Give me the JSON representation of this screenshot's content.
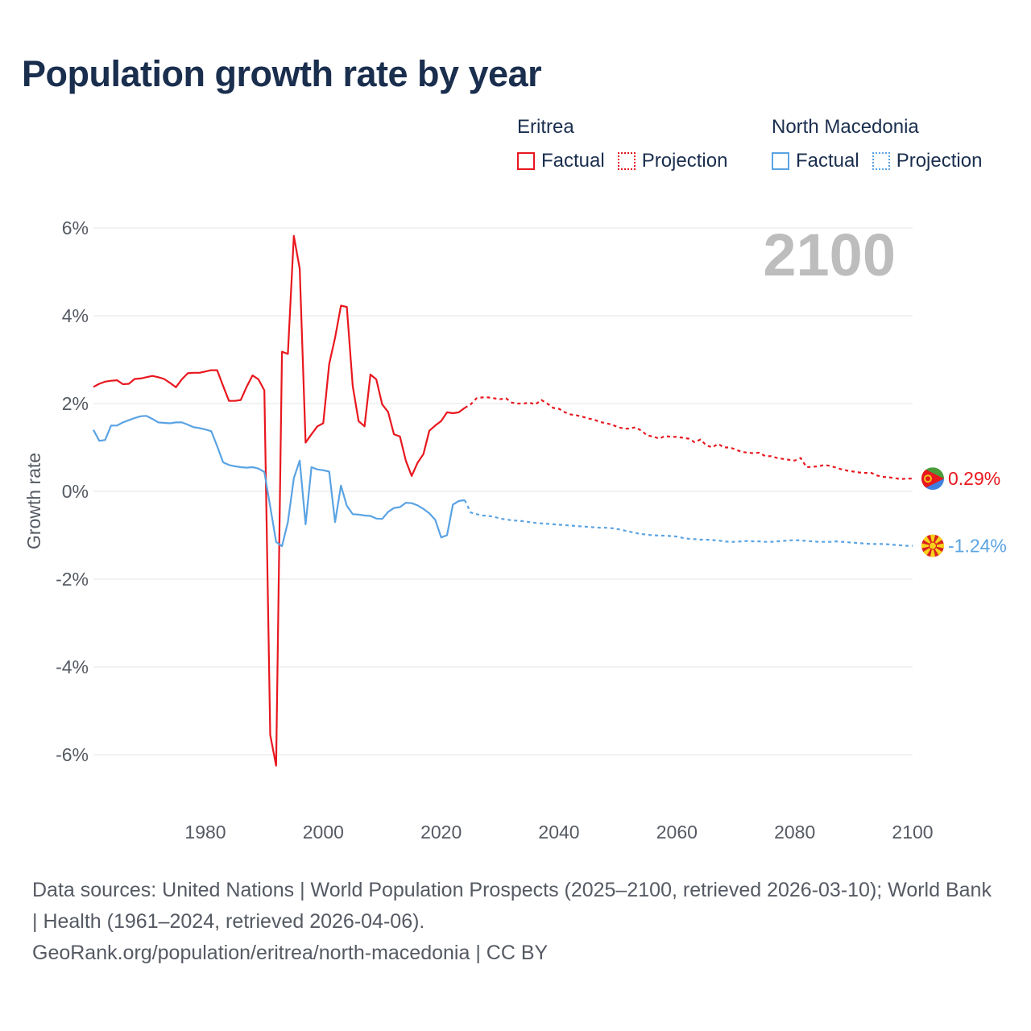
{
  "title": "Population growth rate by year",
  "year_label": "2100",
  "legend": {
    "groups": [
      {
        "name": "Eritrea",
        "factual": "Factual",
        "projection": "Projection",
        "color": "#e8171e"
      },
      {
        "name": "North Macedonia",
        "factual": "Factual",
        "projection": "Projection",
        "color": "#5aa3e3"
      }
    ]
  },
  "footer": {
    "sources": "Data sources: United Nations | World Population Prospects (2025–2100, retrieved 2026-03-10); World Bank | Health (1961–2024, retrieved 2026-04-06).",
    "url": "GeoRank.org/population/eritrea/north-macedonia | CC BY"
  },
  "colors": {
    "grid": "#e6e6e6",
    "tick": "#555a63",
    "year": "#bdbdbd"
  },
  "chart_data": {
    "type": "line",
    "title": "Population growth rate by year",
    "xlabel": "",
    "ylabel": "Growth rate",
    "xlim": [
      1961,
      2100
    ],
    "ylim": [
      -7,
      6.5
    ],
    "x_ticks": [
      1980,
      2000,
      2020,
      2040,
      2060,
      2080,
      2100
    ],
    "y_ticks": [
      {
        "value": 6,
        "label": "6%"
      },
      {
        "value": 4,
        "label": "4%"
      },
      {
        "value": 2,
        "label": "2%"
      },
      {
        "value": 0,
        "label": "0%"
      },
      {
        "value": -2,
        "label": "-2%"
      },
      {
        "value": -4,
        "label": "-4%"
      },
      {
        "value": -6,
        "label": "-6%"
      }
    ],
    "series": [
      {
        "name": "Eritrea",
        "color": "#e8171e",
        "end_label": "0.29%",
        "factual": {
          "x": [
            1961,
            1962,
            1963,
            1964,
            1965,
            1966,
            1967,
            1968,
            1969,
            1970,
            1971,
            1972,
            1973,
            1974,
            1975,
            1976,
            1977,
            1978,
            1979,
            1980,
            1981,
            1982,
            1983,
            1984,
            1985,
            1986,
            1987,
            1988,
            1989,
            1990,
            1991,
            1992,
            1993,
            1994,
            1995,
            1996,
            1997,
            1998,
            1999,
            2000,
            2001,
            2002,
            2003,
            2004,
            2005,
            2006,
            2007,
            2008,
            2009,
            2010,
            2011,
            2012,
            2013,
            2014,
            2015,
            2016,
            2017,
            2018,
            2019,
            2020,
            2021,
            2022,
            2023,
            2024
          ],
          "y": [
            2.38,
            2.45,
            2.5,
            2.52,
            2.53,
            2.44,
            2.45,
            2.56,
            2.57,
            2.6,
            2.63,
            2.6,
            2.56,
            2.47,
            2.37,
            2.55,
            2.69,
            2.7,
            2.7,
            2.73,
            2.76,
            2.76,
            2.4,
            2.06,
            2.06,
            2.08,
            2.38,
            2.64,
            2.55,
            2.3,
            -5.55,
            -6.25,
            3.18,
            3.13,
            5.82,
            5.07,
            1.11,
            1.3,
            1.48,
            1.55,
            2.9,
            3.5,
            4.23,
            4.2,
            2.4,
            1.6,
            1.48,
            2.66,
            2.55,
            1.98,
            1.81,
            1.3,
            1.25,
            0.7,
            0.35,
            0.65,
            0.85,
            1.38,
            1.5,
            1.6,
            1.8,
            1.78,
            1.8,
            1.9
          ]
        },
        "projection": {
          "x": [
            2024,
            2025,
            2026,
            2027,
            2028,
            2029,
            2030,
            2031,
            2032,
            2033,
            2034,
            2035,
            2036,
            2037,
            2038,
            2039,
            2040,
            2041,
            2042,
            2043,
            2044,
            2045,
            2046,
            2047,
            2048,
            2049,
            2050,
            2051,
            2052,
            2053,
            2054,
            2055,
            2056,
            2057,
            2058,
            2059,
            2060,
            2061,
            2062,
            2063,
            2064,
            2065,
            2066,
            2067,
            2068,
            2069,
            2070,
            2071,
            2072,
            2073,
            2074,
            2075,
            2076,
            2077,
            2078,
            2079,
            2080,
            2081,
            2082,
            2083,
            2084,
            2085,
            2086,
            2087,
            2088,
            2089,
            2090,
            2091,
            2092,
            2093,
            2094,
            2095,
            2096,
            2097,
            2098,
            2099,
            2100
          ],
          "y": [
            1.9,
            1.98,
            2.12,
            2.14,
            2.14,
            2.12,
            2.1,
            2.12,
            2.02,
            2.0,
            2.0,
            2.02,
            1.98,
            2.08,
            2.0,
            1.9,
            1.88,
            1.8,
            1.75,
            1.73,
            1.7,
            1.66,
            1.63,
            1.58,
            1.55,
            1.52,
            1.46,
            1.43,
            1.43,
            1.46,
            1.38,
            1.27,
            1.25,
            1.2,
            1.26,
            1.24,
            1.24,
            1.22,
            1.2,
            1.12,
            1.18,
            1.05,
            1.0,
            1.08,
            1.0,
            1.0,
            0.95,
            0.9,
            0.88,
            0.87,
            0.88,
            0.8,
            0.8,
            0.76,
            0.74,
            0.72,
            0.7,
            0.76,
            0.55,
            0.56,
            0.57,
            0.6,
            0.58,
            0.54,
            0.5,
            0.47,
            0.45,
            0.43,
            0.42,
            0.42,
            0.36,
            0.33,
            0.32,
            0.3,
            0.28,
            0.29,
            0.29
          ]
        }
      },
      {
        "name": "North Macedonia",
        "color": "#5aa3e3",
        "end_label": "-1.24%",
        "factual": {
          "x": [
            1961,
            1962,
            1963,
            1964,
            1965,
            1966,
            1967,
            1968,
            1969,
            1970,
            1971,
            1972,
            1973,
            1974,
            1975,
            1976,
            1977,
            1978,
            1979,
            1980,
            1981,
            1982,
            1983,
            1984,
            1985,
            1986,
            1987,
            1988,
            1989,
            1990,
            1991,
            1992,
            1993,
            1994,
            1995,
            1996,
            1997,
            1998,
            1999,
            2000,
            2001,
            2002,
            2003,
            2004,
            2005,
            2006,
            2007,
            2008,
            2009,
            2010,
            2011,
            2012,
            2013,
            2014,
            2015,
            2016,
            2017,
            2018,
            2019,
            2020,
            2021,
            2022,
            2023,
            2024
          ],
          "y": [
            1.4,
            1.15,
            1.17,
            1.5,
            1.5,
            1.57,
            1.62,
            1.67,
            1.71,
            1.72,
            1.65,
            1.57,
            1.56,
            1.55,
            1.57,
            1.57,
            1.52,
            1.46,
            1.44,
            1.41,
            1.37,
            1.03,
            0.66,
            0.6,
            0.57,
            0.55,
            0.54,
            0.55,
            0.52,
            0.44,
            -0.35,
            -1.15,
            -1.25,
            -0.7,
            0.3,
            0.7,
            -0.75,
            0.55,
            0.5,
            0.48,
            0.45,
            -0.7,
            0.13,
            -0.33,
            -0.52,
            -0.53,
            -0.55,
            -0.56,
            -0.62,
            -0.63,
            -0.47,
            -0.38,
            -0.36,
            -0.26,
            -0.27,
            -0.32,
            -0.4,
            -0.5,
            -0.65,
            -1.05,
            -1.0,
            -0.3,
            -0.22,
            -0.2
          ]
        },
        "projection": {
          "x": [
            2024,
            2025,
            2026,
            2027,
            2028,
            2029,
            2030,
            2031,
            2032,
            2033,
            2034,
            2035,
            2036,
            2037,
            2038,
            2039,
            2040,
            2041,
            2042,
            2043,
            2044,
            2045,
            2046,
            2047,
            2048,
            2049,
            2050,
            2051,
            2052,
            2053,
            2054,
            2055,
            2056,
            2057,
            2058,
            2059,
            2060,
            2061,
            2062,
            2063,
            2064,
            2065,
            2066,
            2067,
            2068,
            2069,
            2070,
            2071,
            2072,
            2073,
            2074,
            2075,
            2076,
            2077,
            2078,
            2079,
            2080,
            2081,
            2082,
            2083,
            2084,
            2085,
            2086,
            2087,
            2088,
            2089,
            2090,
            2091,
            2092,
            2093,
            2094,
            2095,
            2096,
            2097,
            2098,
            2099,
            2100
          ],
          "y": [
            -0.2,
            -0.48,
            -0.52,
            -0.55,
            -0.56,
            -0.58,
            -0.62,
            -0.64,
            -0.66,
            -0.67,
            -0.68,
            -0.7,
            -0.72,
            -0.73,
            -0.74,
            -0.75,
            -0.76,
            -0.77,
            -0.78,
            -0.79,
            -0.8,
            -0.81,
            -0.82,
            -0.83,
            -0.83,
            -0.84,
            -0.86,
            -0.89,
            -0.92,
            -0.95,
            -0.97,
            -0.99,
            -1.0,
            -1.01,
            -1.01,
            -1.02,
            -1.03,
            -1.06,
            -1.08,
            -1.09,
            -1.1,
            -1.1,
            -1.11,
            -1.12,
            -1.14,
            -1.15,
            -1.15,
            -1.14,
            -1.13,
            -1.14,
            -1.14,
            -1.15,
            -1.15,
            -1.14,
            -1.13,
            -1.12,
            -1.11,
            -1.12,
            -1.13,
            -1.14,
            -1.15,
            -1.15,
            -1.15,
            -1.14,
            -1.15,
            -1.16,
            -1.17,
            -1.18,
            -1.19,
            -1.2,
            -1.2,
            -1.2,
            -1.21,
            -1.22,
            -1.23,
            -1.24,
            -1.24
          ]
        }
      }
    ]
  }
}
